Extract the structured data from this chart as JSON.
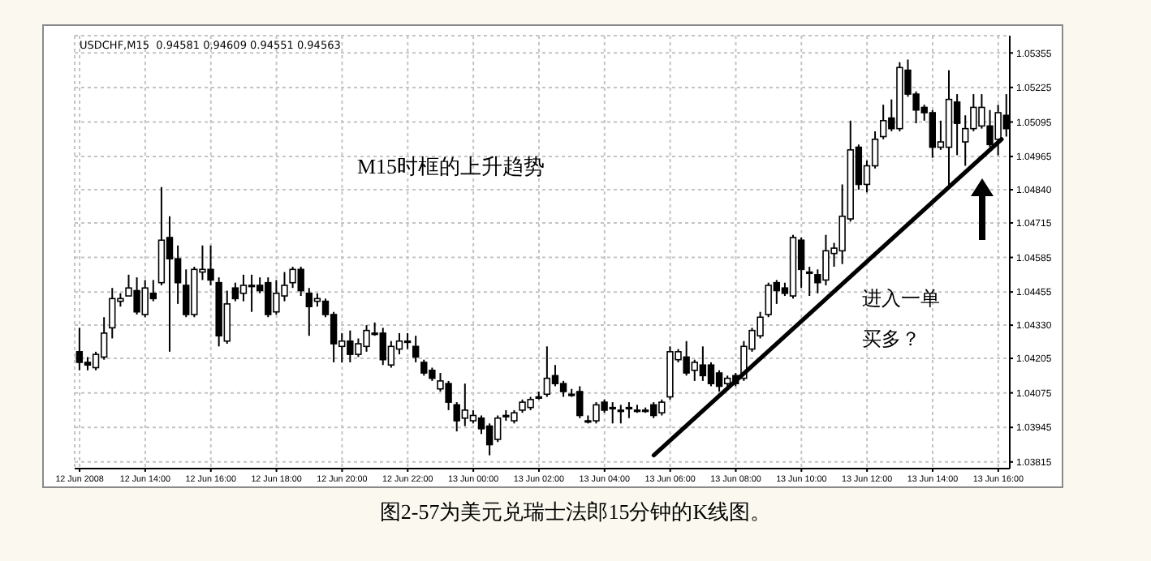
{
  "chart_data": {
    "type": "candlestick",
    "title": "USDCHF,M15  0.94581 0.94609 0.94551 0.94563",
    "annotations": [
      "M15时框的上升趋势",
      "进入一单",
      "买多？",
      "图2-57为美元兑瑞士法郎15分钟的K线图。"
    ],
    "x": [
      "2008-06-12T12:00",
      "2008-06-12T12:15",
      "2008-06-12T12:30",
      "2008-06-12T12:45",
      "2008-06-12T13:00",
      "2008-06-12T13:15",
      "2008-06-12T13:30",
      "2008-06-12T13:45",
      "2008-06-12T14:00",
      "2008-06-12T14:15",
      "2008-06-12T14:30",
      "2008-06-12T14:45",
      "2008-06-12T15:00",
      "2008-06-12T15:15",
      "2008-06-12T15:30",
      "2008-06-12T15:45",
      "2008-06-12T16:00",
      "2008-06-12T16:15",
      "2008-06-12T16:30",
      "2008-06-12T16:45",
      "2008-06-12T17:00",
      "2008-06-12T17:15",
      "2008-06-12T17:30",
      "2008-06-12T17:45",
      "2008-06-12T18:00",
      "2008-06-12T18:15",
      "2008-06-12T18:30",
      "2008-06-12T18:45",
      "2008-06-12T19:00",
      "2008-06-12T19:15",
      "2008-06-12T19:30",
      "2008-06-12T19:45",
      "2008-06-12T20:00",
      "2008-06-12T20:15",
      "2008-06-12T20:30",
      "2008-06-12T20:45",
      "2008-06-12T21:00",
      "2008-06-12T21:15",
      "2008-06-12T21:30",
      "2008-06-12T21:45",
      "2008-06-12T22:00",
      "2008-06-12T22:15",
      "2008-06-12T22:30",
      "2008-06-12T22:45",
      "2008-06-12T23:00",
      "2008-06-12T23:15",
      "2008-06-12T23:30",
      "2008-06-12T23:45",
      "2008-06-13T00:00",
      "2008-06-13T00:15",
      "2008-06-13T00:30",
      "2008-06-13T00:45",
      "2008-06-13T01:00",
      "2008-06-13T01:15",
      "2008-06-13T01:30",
      "2008-06-13T01:45",
      "2008-06-13T02:00",
      "2008-06-13T02:15",
      "2008-06-13T02:30",
      "2008-06-13T02:45",
      "2008-06-13T03:00",
      "2008-06-13T03:15",
      "2008-06-13T03:30",
      "2008-06-13T03:45",
      "2008-06-13T04:00",
      "2008-06-13T04:15",
      "2008-06-13T04:30",
      "2008-06-13T04:45",
      "2008-06-13T05:00",
      "2008-06-13T05:15",
      "2008-06-13T05:30",
      "2008-06-13T05:45",
      "2008-06-13T06:00",
      "2008-06-13T06:15",
      "2008-06-13T06:30",
      "2008-06-13T06:45",
      "2008-06-13T07:00",
      "2008-06-13T07:15",
      "2008-06-13T07:30",
      "2008-06-13T07:45",
      "2008-06-13T08:00",
      "2008-06-13T08:15",
      "2008-06-13T08:30",
      "2008-06-13T08:45",
      "2008-06-13T09:00",
      "2008-06-13T09:15",
      "2008-06-13T09:30",
      "2008-06-13T09:45",
      "2008-06-13T10:00",
      "2008-06-13T10:15",
      "2008-06-13T10:30",
      "2008-06-13T10:45",
      "2008-06-13T11:00",
      "2008-06-13T11:15",
      "2008-06-13T11:30",
      "2008-06-13T11:45",
      "2008-06-13T12:00",
      "2008-06-13T12:15",
      "2008-06-13T12:30",
      "2008-06-13T12:45",
      "2008-06-13T13:00",
      "2008-06-13T13:15",
      "2008-06-13T13:30",
      "2008-06-13T13:45",
      "2008-06-13T14:00",
      "2008-06-13T14:15",
      "2008-06-13T14:30",
      "2008-06-13T14:45",
      "2008-06-13T15:00",
      "2008-06-13T15:15",
      "2008-06-13T15:30",
      "2008-06-13T15:45",
      "2008-06-13T16:00",
      "2008-06-13T16:15"
    ],
    "ohlc": [
      [
        1.0423,
        1.0432,
        1.0416,
        1.0419
      ],
      [
        1.0419,
        1.0421,
        1.0416,
        1.0418
      ],
      [
        1.0417,
        1.0423,
        1.0416,
        1.0422
      ],
      [
        1.0421,
        1.0436,
        1.042,
        1.043
      ],
      [
        1.0432,
        1.0447,
        1.0428,
        1.0443
      ],
      [
        1.0442,
        1.0445,
        1.044,
        1.0443
      ],
      [
        1.0444,
        1.0452,
        1.0444,
        1.0447
      ],
      [
        1.0446,
        1.0451,
        1.0437,
        1.0438
      ],
      [
        1.0437,
        1.045,
        1.0436,
        1.0447
      ],
      [
        1.0445,
        1.045,
        1.0442,
        1.0443
      ],
      [
        1.0449,
        1.0485,
        1.0448,
        1.0465
      ],
      [
        1.0466,
        1.0474,
        1.0423,
        1.0458
      ],
      [
        1.0458,
        1.0463,
        1.0441,
        1.0449
      ],
      [
        1.0448,
        1.0454,
        1.0436,
        1.0437
      ],
      [
        1.0437,
        1.0455,
        1.0436,
        1.0454
      ],
      [
        1.0453,
        1.0463,
        1.045,
        1.0454
      ],
      [
        1.0454,
        1.0463,
        1.0448,
        1.045
      ],
      [
        1.0449,
        1.0451,
        1.0425,
        1.0429
      ],
      [
        1.0427,
        1.0446,
        1.0426,
        1.0441
      ],
      [
        1.0447,
        1.0449,
        1.0442,
        1.0443
      ],
      [
        1.0445,
        1.0452,
        1.0442,
        1.0448
      ],
      [
        1.0448,
        1.0452,
        1.0438,
        1.0448
      ],
      [
        1.0448,
        1.0451,
        1.0445,
        1.0446
      ],
      [
        1.0449,
        1.0451,
        1.0436,
        1.0437
      ],
      [
        1.0438,
        1.045,
        1.0437,
        1.0445
      ],
      [
        1.0444,
        1.0453,
        1.0442,
        1.0448
      ],
      [
        1.0449,
        1.0455,
        1.0447,
        1.0454
      ],
      [
        1.0454,
        1.0455,
        1.0444,
        1.0446
      ],
      [
        1.0445,
        1.0447,
        1.0429,
        1.044
      ],
      [
        1.0442,
        1.0445,
        1.044,
        1.0443
      ],
      [
        1.0442,
        1.0443,
        1.0436,
        1.0437
      ],
      [
        1.0437,
        1.0438,
        1.0419,
        1.0426
      ],
      [
        1.0425,
        1.043,
        1.0419,
        1.0427
      ],
      [
        1.0427,
        1.0431,
        1.0419,
        1.0422
      ],
      [
        1.0422,
        1.0428,
        1.0421,
        1.0426
      ],
      [
        1.0425,
        1.0433,
        1.0423,
        1.0431
      ],
      [
        1.043,
        1.0434,
        1.0429,
        1.043
      ],
      [
        1.043,
        1.0432,
        1.0418,
        1.042
      ],
      [
        1.0418,
        1.0427,
        1.0417,
        1.0425
      ],
      [
        1.0424,
        1.043,
        1.0422,
        1.0427
      ],
      [
        1.0427,
        1.043,
        1.0424,
        1.0427
      ],
      [
        1.0425,
        1.0429,
        1.0419,
        1.0421
      ],
      [
        1.0419,
        1.042,
        1.0414,
        1.0415
      ],
      [
        1.0416,
        1.0417,
        1.0412,
        1.0413
      ],
      [
        1.0409,
        1.0415,
        1.0408,
        1.0412
      ],
      [
        1.0411,
        1.0412,
        1.0401,
        1.0404
      ],
      [
        1.0403,
        1.0404,
        1.0393,
        1.0397
      ],
      [
        1.0398,
        1.0411,
        1.0395,
        1.0401
      ],
      [
        1.0397,
        1.0401,
        1.0396,
        1.0399
      ],
      [
        1.0398,
        1.0399,
        1.0392,
        1.0394
      ],
      [
        1.0395,
        1.0396,
        1.0384,
        1.0388
      ],
      [
        1.039,
        1.0399,
        1.0389,
        1.0398
      ],
      [
        1.0399,
        1.0401,
        1.0397,
        1.0399
      ],
      [
        1.0397,
        1.0401,
        1.0396,
        1.04
      ],
      [
        1.0401,
        1.0405,
        1.04,
        1.0404
      ],
      [
        1.0402,
        1.0406,
        1.0401,
        1.0405
      ],
      [
        1.0406,
        1.0408,
        1.0405,
        1.0406
      ],
      [
        1.0407,
        1.0425,
        1.0406,
        1.0413
      ],
      [
        1.0414,
        1.0418,
        1.041,
        1.0411
      ],
      [
        1.0411,
        1.0412,
        1.0406,
        1.0408
      ],
      [
        1.0407,
        1.0409,
        1.0406,
        1.0407
      ],
      [
        1.0408,
        1.041,
        1.0398,
        1.0399
      ],
      [
        1.0397,
        1.0399,
        1.0396,
        1.0397
      ],
      [
        1.0397,
        1.0404,
        1.0396,
        1.0403
      ],
      [
        1.0404,
        1.0405,
        1.04,
        1.0401
      ],
      [
        1.0402,
        1.0404,
        1.0396,
        1.0402
      ],
      [
        1.0401,
        1.0403,
        1.0396,
        1.0401
      ],
      [
        1.0402,
        1.0404,
        1.0398,
        1.0402
      ],
      [
        1.0401,
        1.0403,
        1.04,
        1.0401
      ],
      [
        1.0401,
        1.0402,
        1.04,
        1.0401
      ],
      [
        1.0403,
        1.0404,
        1.0398,
        1.0399
      ],
      [
        1.04,
        1.0405,
        1.0399,
        1.0404
      ],
      [
        1.0406,
        1.0425,
        1.0405,
        1.0423
      ],
      [
        1.042,
        1.0424,
        1.0419,
        1.0423
      ],
      [
        1.0421,
        1.0427,
        1.0414,
        1.0415
      ],
      [
        1.0416,
        1.042,
        1.0412,
        1.0419
      ],
      [
        1.0418,
        1.0425,
        1.0412,
        1.0414
      ],
      [
        1.0418,
        1.0419,
        1.041,
        1.0411
      ],
      [
        1.0415,
        1.0416,
        1.0408,
        1.041
      ],
      [
        1.0411,
        1.0414,
        1.041,
        1.0413
      ],
      [
        1.0414,
        1.0415,
        1.041,
        1.0411
      ],
      [
        1.0413,
        1.0427,
        1.0412,
        1.0425
      ],
      [
        1.0424,
        1.0432,
        1.0423,
        1.0431
      ],
      [
        1.0429,
        1.0438,
        1.0428,
        1.0436
      ],
      [
        1.0437,
        1.0449,
        1.0436,
        1.0448
      ],
      [
        1.0449,
        1.045,
        1.0441,
        1.0446
      ],
      [
        1.0447,
        1.0449,
        1.0444,
        1.0445
      ],
      [
        1.0444,
        1.0467,
        1.0443,
        1.0466
      ],
      [
        1.0465,
        1.0466,
        1.0447,
        1.0454
      ],
      [
        1.0453,
        1.0455,
        1.0444,
        1.0453
      ],
      [
        1.0452,
        1.0454,
        1.0445,
        1.0449
      ],
      [
        1.045,
        1.0467,
        1.0448,
        1.0461
      ],
      [
        1.046,
        1.0464,
        1.0455,
        1.0462
      ],
      [
        1.0461,
        1.0486,
        1.0456,
        1.0474
      ],
      [
        1.0473,
        1.051,
        1.0472,
        1.0499
      ],
      [
        1.05,
        1.0501,
        1.0484,
        1.0486
      ],
      [
        1.0486,
        1.0495,
        1.0483,
        1.0493
      ],
      [
        1.0493,
        1.0506,
        1.0492,
        1.0503
      ],
      [
        1.0504,
        1.0516,
        1.0503,
        1.051
      ],
      [
        1.0511,
        1.0518,
        1.0506,
        1.0507
      ],
      [
        1.0507,
        1.0532,
        1.0506,
        1.053
      ],
      [
        1.0529,
        1.0533,
        1.0519,
        1.052
      ],
      [
        1.052,
        1.0521,
        1.0509,
        1.0514
      ],
      [
        1.0515,
        1.0516,
        1.051,
        1.0513
      ],
      [
        1.0513,
        1.0514,
        1.0496,
        1.05
      ],
      [
        1.05,
        1.051,
        1.0499,
        1.0502
      ],
      [
        1.05,
        1.0529,
        1.0485,
        1.0518
      ],
      [
        1.0517,
        1.052,
        1.0497,
        1.0509
      ],
      [
        1.0502,
        1.0512,
        1.0493,
        1.0507
      ],
      [
        1.0507,
        1.052,
        1.0506,
        1.0515
      ],
      [
        1.0508,
        1.052,
        1.0507,
        1.0515
      ],
      [
        1.0508,
        1.0514,
        1.05,
        1.0501
      ],
      [
        1.0503,
        1.0516,
        1.0497,
        1.0513
      ],
      [
        1.0512,
        1.052,
        1.0504,
        1.0507
      ]
    ],
    "series": [
      {
        "type": "line",
        "color": "#000000",
        "x": [
          "2008-06-13T05:30",
          "2008-06-13T16:06"
        ],
        "values": [
          1.0384,
          1.0503
        ]
      }
    ],
    "xlim": [
      "2008-06-12T11:51",
      "2008-06-13T16:21"
    ],
    "xticks": [
      {
        "value": "2008-06-12T12:00",
        "label": "12 Jun 2008"
      },
      {
        "value": "2008-06-12T14:00",
        "label": "12 Jun 14:00"
      },
      {
        "value": "2008-06-12T16:00",
        "label": "12 Jun 16:00"
      },
      {
        "value": "2008-06-12T18:00",
        "label": "12 Jun 18:00"
      },
      {
        "value": "2008-06-12T20:00",
        "label": "12 Jun 20:00"
      },
      {
        "value": "2008-06-12T22:00",
        "label": "12 Jun 22:00"
      },
      {
        "value": "2008-06-13T00:00",
        "label": "13 Jun 00:00"
      },
      {
        "value": "2008-06-13T02:00",
        "label": "13 Jun 02:00"
      },
      {
        "value": "2008-06-13T04:00",
        "label": "13 Jun 04:00"
      },
      {
        "value": "2008-06-13T06:00",
        "label": "13 Jun 06:00"
      },
      {
        "value": "2008-06-13T08:00",
        "label": "13 Jun 08:00"
      },
      {
        "value": "2008-06-13T10:00",
        "label": "13 Jun 10:00"
      },
      {
        "value": "2008-06-13T12:00",
        "label": "13 Jun 12:00"
      },
      {
        "value": "2008-06-13T14:00",
        "label": "13 Jun 14:00"
      },
      {
        "value": "2008-06-13T16:00",
        "label": "13 Jun 16:00"
      }
    ],
    "ylim": [
      1.0379,
      1.0542
    ],
    "yticks": [
      1.03815,
      1.03945,
      1.04075,
      1.04205,
      {
        "value": 1.0433,
        "label": "1.04330"
      },
      1.04455,
      1.04585,
      1.04715,
      {
        "value": 1.0484,
        "label": "1.04840"
      },
      1.04965,
      1.05095,
      1.05225,
      1.05355
    ],
    "grid": true,
    "line_style": "solid"
  }
}
